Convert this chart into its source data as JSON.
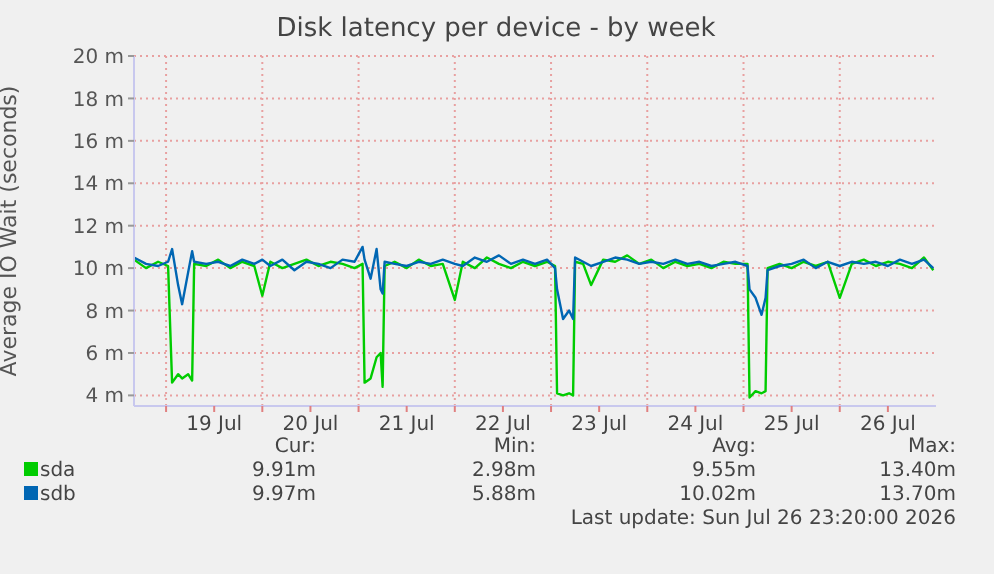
{
  "chart_data": {
    "type": "line",
    "title": "Disk latency per device - by week",
    "ylabel": "Average IO Wait (seconds)",
    "x": [
      "2026-07-18T16:00",
      "2026-07-18T19:00",
      "2026-07-18T22:00",
      "2026-07-19T00:30",
      "2026-07-19T01:30",
      "2026-07-19T03:00",
      "2026-07-19T04:00",
      "2026-07-19T05:30",
      "2026-07-19T06:30",
      "2026-07-19T07:00",
      "2026-07-19T10:00",
      "2026-07-19T13:00",
      "2026-07-19T16:00",
      "2026-07-19T19:00",
      "2026-07-19T22:00",
      "2026-07-20T00:00",
      "2026-07-20T02:00",
      "2026-07-20T05:00",
      "2026-07-20T08:00",
      "2026-07-20T11:00",
      "2026-07-20T14:00",
      "2026-07-20T17:00",
      "2026-07-20T20:00",
      "2026-07-20T23:00",
      "2026-07-21T01:00",
      "2026-07-21T01:30",
      "2026-07-21T03:00",
      "2026-07-21T04:30",
      "2026-07-21T05:30",
      "2026-07-21T06:00",
      "2026-07-21T06:30",
      "2026-07-21T09:00",
      "2026-07-21T12:00",
      "2026-07-21T15:00",
      "2026-07-21T18:00",
      "2026-07-21T21:00",
      "2026-07-22T00:00",
      "2026-07-22T02:00",
      "2026-07-22T05:00",
      "2026-07-22T08:00",
      "2026-07-22T11:00",
      "2026-07-22T14:00",
      "2026-07-22T17:00",
      "2026-07-22T20:00",
      "2026-07-22T23:00",
      "2026-07-23T01:00",
      "2026-07-23T01:30",
      "2026-07-23T03:00",
      "2026-07-23T04:30",
      "2026-07-23T05:30",
      "2026-07-23T06:00",
      "2026-07-23T08:00",
      "2026-07-23T10:00",
      "2026-07-23T13:00",
      "2026-07-23T16:00",
      "2026-07-23T19:00",
      "2026-07-23T22:00",
      "2026-07-24T01:00",
      "2026-07-24T04:00",
      "2026-07-24T07:00",
      "2026-07-24T10:00",
      "2026-07-24T13:00",
      "2026-07-24T16:00",
      "2026-07-24T19:00",
      "2026-07-24T22:00",
      "2026-07-25T01:00",
      "2026-07-25T01:30",
      "2026-07-25T03:00",
      "2026-07-25T04:30",
      "2026-07-25T05:30",
      "2026-07-25T06:00",
      "2026-07-25T09:00",
      "2026-07-25T12:00",
      "2026-07-25T15:00",
      "2026-07-25T18:00",
      "2026-07-25T21:00",
      "2026-07-26T00:00",
      "2026-07-26T03:00",
      "2026-07-26T06:00",
      "2026-07-26T09:00",
      "2026-07-26T12:00",
      "2026-07-26T15:00",
      "2026-07-26T18:00",
      "2026-07-26T21:00",
      "2026-07-26T23:20"
    ],
    "series": [
      {
        "name": "sda",
        "color": "#00cc00",
        "values": [
          10.4,
          10.0,
          10.3,
          10.1,
          4.6,
          5.0,
          4.8,
          5.0,
          4.7,
          10.2,
          10.1,
          10.4,
          10.0,
          10.3,
          10.1,
          8.7,
          10.3,
          10.0,
          10.2,
          10.4,
          10.1,
          10.3,
          10.2,
          10.0,
          10.2,
          4.6,
          4.8,
          5.8,
          6.0,
          4.4,
          10.1,
          10.3,
          10.0,
          10.4,
          10.1,
          10.2,
          8.5,
          10.3,
          10.0,
          10.5,
          10.2,
          10.0,
          10.3,
          10.1,
          10.3,
          10.1,
          4.1,
          4.0,
          4.1,
          4.0,
          10.3,
          10.2,
          9.2,
          10.4,
          10.3,
          10.6,
          10.2,
          10.4,
          10.0,
          10.3,
          10.1,
          10.2,
          10.0,
          10.3,
          10.2,
          10.2,
          3.9,
          4.2,
          4.1,
          4.2,
          10.0,
          10.2,
          10.0,
          10.3,
          10.1,
          10.3,
          8.6,
          10.2,
          10.4,
          10.1,
          10.3,
          10.2,
          10.0,
          10.5,
          9.9
        ]
      },
      {
        "name": "sdb",
        "color": "#0066b3",
        "values": [
          10.5,
          10.2,
          10.1,
          10.3,
          10.9,
          9.2,
          8.3,
          9.8,
          10.8,
          10.3,
          10.2,
          10.3,
          10.1,
          10.4,
          10.2,
          10.4,
          10.1,
          10.4,
          9.9,
          10.3,
          10.2,
          10.0,
          10.4,
          10.3,
          11.0,
          10.4,
          9.5,
          10.9,
          9.0,
          8.8,
          10.3,
          10.2,
          10.1,
          10.3,
          10.2,
          10.4,
          10.2,
          10.1,
          10.5,
          10.3,
          10.6,
          10.2,
          10.4,
          10.2,
          10.4,
          10.0,
          9.0,
          7.6,
          8.0,
          7.6,
          10.5,
          10.3,
          10.1,
          10.3,
          10.5,
          10.4,
          10.2,
          10.3,
          10.2,
          10.4,
          10.2,
          10.3,
          10.1,
          10.2,
          10.3,
          10.1,
          9.0,
          8.6,
          7.8,
          8.6,
          9.9,
          10.1,
          10.2,
          10.4,
          10.0,
          10.3,
          10.1,
          10.3,
          10.2,
          10.3,
          10.1,
          10.4,
          10.2,
          10.4,
          10.0
        ]
      }
    ],
    "xlim": [
      "2026-07-18T16:00",
      "2026-07-27T00:00"
    ],
    "xticks": [
      {
        "value": "2026-07-19T00:00",
        "label": null
      },
      {
        "value": "2026-07-19T12:00",
        "label": "19 Jul"
      },
      {
        "value": "2026-07-20T00:00",
        "label": null
      },
      {
        "value": "2026-07-20T12:00",
        "label": "20 Jul"
      },
      {
        "value": "2026-07-21T00:00",
        "label": null
      },
      {
        "value": "2026-07-21T12:00",
        "label": "21 Jul"
      },
      {
        "value": "2026-07-22T00:00",
        "label": null
      },
      {
        "value": "2026-07-22T12:00",
        "label": "22 Jul"
      },
      {
        "value": "2026-07-23T00:00",
        "label": null
      },
      {
        "value": "2026-07-23T12:00",
        "label": "23 Jul"
      },
      {
        "value": "2026-07-24T00:00",
        "label": null
      },
      {
        "value": "2026-07-24T12:00",
        "label": "24 Jul"
      },
      {
        "value": "2026-07-25T00:00",
        "label": null
      },
      {
        "value": "2026-07-25T12:00",
        "label": "25 Jul"
      },
      {
        "value": "2026-07-26T00:00",
        "label": null
      },
      {
        "value": "2026-07-26T12:00",
        "label": "26 Jul"
      }
    ],
    "ylim": [
      3.5,
      20
    ],
    "yticks": [
      {
        "value": 4,
        "label": "4 m"
      },
      {
        "value": 6,
        "label": "6 m"
      },
      {
        "value": 8,
        "label": "8 m"
      },
      {
        "value": 10,
        "label": "10 m"
      },
      {
        "value": 12,
        "label": "12 m"
      },
      {
        "value": 14,
        "label": "14 m"
      },
      {
        "value": 16,
        "label": "16 m"
      },
      {
        "value": 18,
        "label": "18 m"
      },
      {
        "value": 20,
        "label": "20 m"
      }
    ],
    "grid": true,
    "legend": "bottom left",
    "annotations": [
      "Cur:",
      "Min:",
      "Avg:",
      "Max:",
      "9.91m",
      "2.98m",
      "9.55m",
      "13.40m",
      "9.97m",
      "5.88m",
      "10.02m",
      "13.70m",
      "Last update: Sun Jul 26 23:20:00 2026"
    ]
  }
}
